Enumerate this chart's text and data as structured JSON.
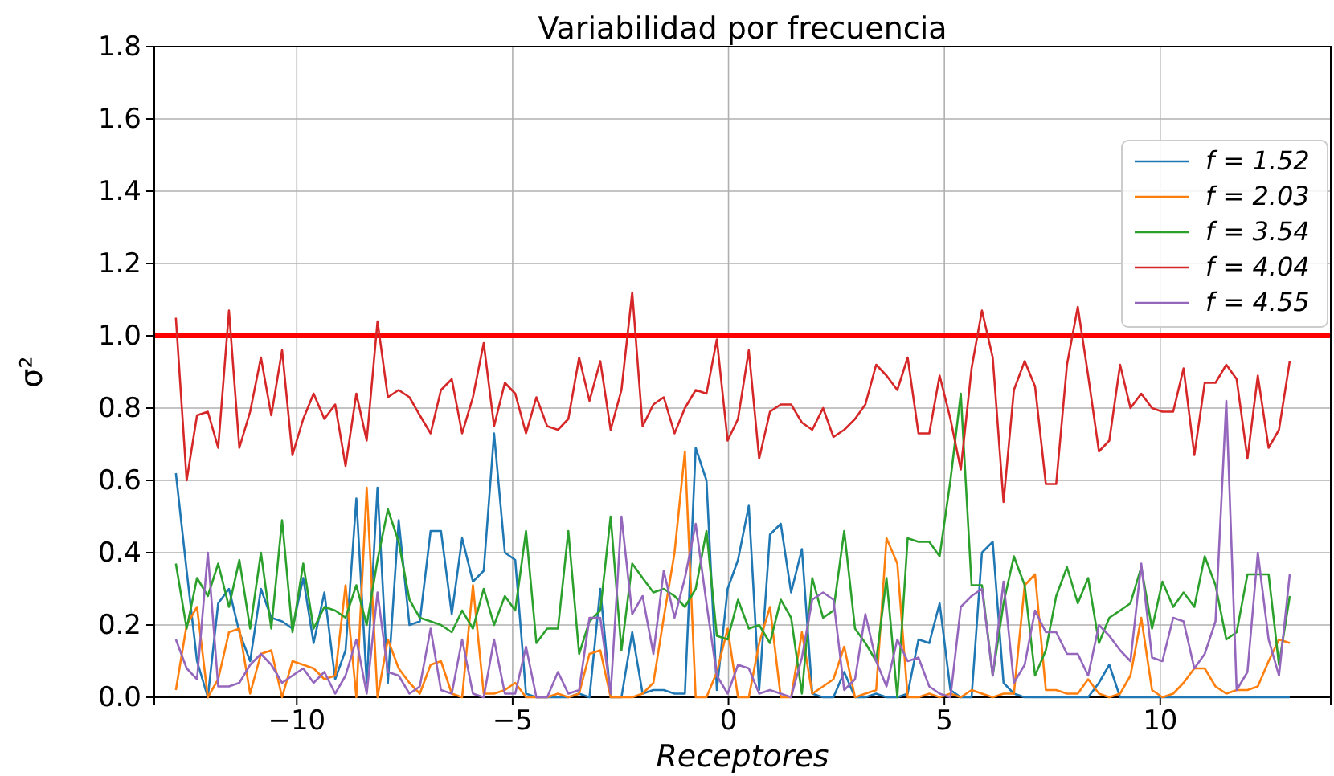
{
  "chart_data": {
    "type": "line",
    "title": "Variabilidad por frecuencia",
    "xlabel": "Receptores",
    "ylabel": "σ²",
    "x": [
      -12.8,
      -12.55,
      -12.31,
      -12.06,
      -11.82,
      -11.57,
      -11.33,
      -11.08,
      -10.83,
      -10.59,
      -10.34,
      -10.1,
      -9.85,
      -9.61,
      -9.36,
      -9.11,
      -8.87,
      -8.62,
      -8.38,
      -8.13,
      -7.89,
      -7.64,
      -7.39,
      -7.15,
      -6.9,
      -6.66,
      -6.41,
      -6.17,
      -5.92,
      -5.67,
      -5.43,
      -5.18,
      -4.94,
      -4.69,
      -4.45,
      -4.2,
      -3.95,
      -3.71,
      -3.46,
      -3.22,
      -2.97,
      -2.73,
      -2.48,
      -2.23,
      -1.99,
      -1.74,
      -1.5,
      -1.25,
      -1.01,
      -0.76,
      -0.51,
      -0.27,
      -0.02,
      0.22,
      0.47,
      0.71,
      0.96,
      1.21,
      1.45,
      1.7,
      1.94,
      2.19,
      2.43,
      2.68,
      2.93,
      3.17,
      3.42,
      3.66,
      3.91,
      4.15,
      4.4,
      4.65,
      4.89,
      5.14,
      5.38,
      5.63,
      5.87,
      6.12,
      6.37,
      6.61,
      6.86,
      7.1,
      7.35,
      7.59,
      7.84,
      8.09,
      8.33,
      8.58,
      8.82,
      9.07,
      9.31,
      9.56,
      9.81,
      10.05,
      10.3,
      10.54,
      10.79,
      11.03,
      11.28,
      11.53,
      11.77,
      12.02,
      12.26,
      12.51,
      12.75,
      13.0
    ],
    "series": [
      {
        "name": "f = 1.52",
        "color": "#1f77b4",
        "values": [
          0.62,
          0.35,
          0.1,
          0.0,
          0.26,
          0.3,
          0.18,
          0.1,
          0.3,
          0.22,
          0.21,
          0.19,
          0.33,
          0.15,
          0.29,
          0.05,
          0.13,
          0.55,
          0.04,
          0.58,
          0.04,
          0.49,
          0.2,
          0.21,
          0.46,
          0.46,
          0.23,
          0.44,
          0.32,
          0.35,
          0.73,
          0.4,
          0.38,
          0.01,
          0.0,
          0.0,
          null,
          0.0,
          0.01,
          0.0,
          0.3,
          0.0,
          0.0,
          0.18,
          0.01,
          0.02,
          0.02,
          0.01,
          0.01,
          0.69,
          0.6,
          0.02,
          0.3,
          0.38,
          0.53,
          0.02,
          0.45,
          0.48,
          0.29,
          0.41,
          0.01,
          0.0,
          0.0,
          0.07,
          0.0,
          0.0,
          0.01,
          0.0,
          0.0,
          0.01,
          0.16,
          0.15,
          0.26,
          0.02,
          0.0,
          0.0,
          0.4,
          0.43,
          0.04,
          0.01,
          0.0,
          0.0,
          0.0,
          0.0,
          0.0,
          0.0,
          0.0,
          0.04,
          0.09,
          0.0,
          0.0,
          0.0,
          0.0,
          0.0,
          0.0,
          0.0,
          0.0,
          0.0,
          0.0,
          0.0,
          0.0,
          0.0,
          0.0,
          0.0,
          0.0,
          0.0
        ]
      },
      {
        "name": "f = 2.03",
        "color": "#ff7f0e",
        "values": [
          0.02,
          0.2,
          0.25,
          0.0,
          0.05,
          0.18,
          0.19,
          0.01,
          0.12,
          0.13,
          0.0,
          0.1,
          0.09,
          0.08,
          0.05,
          0.06,
          0.31,
          0.0,
          0.58,
          0.0,
          0.16,
          0.08,
          0.04,
          0.01,
          0.09,
          0.1,
          0.01,
          0.0,
          0.31,
          0.01,
          0.01,
          0.02,
          0.04,
          0.0,
          0.0,
          0.0,
          0.01,
          0.0,
          0.01,
          0.12,
          0.13,
          0.0,
          0.0,
          0.0,
          0.01,
          0.04,
          0.22,
          0.4,
          0.68,
          0.0,
          0.0,
          0.07,
          0.19,
          0.0,
          0.0,
          0.15,
          0.25,
          0.0,
          0.0,
          0.18,
          0.01,
          0.03,
          0.05,
          0.14,
          0.0,
          0.01,
          0.02,
          0.44,
          0.37,
          0.0,
          0.0,
          0.01,
          0.0,
          0.01,
          0.0,
          0.02,
          0.01,
          0.0,
          0.01,
          0.01,
          0.31,
          0.34,
          0.02,
          0.02,
          0.01,
          0.01,
          0.05,
          0.01,
          0.0,
          0.01,
          0.06,
          0.22,
          0.02,
          0.0,
          0.01,
          0.04,
          0.08,
          0.08,
          0.03,
          0.01,
          0.02,
          0.02,
          0.03,
          0.1,
          0.16,
          0.15
        ]
      },
      {
        "name": "f = 3.54",
        "color": "#2ca02c",
        "values": [
          0.37,
          0.19,
          0.33,
          0.28,
          0.37,
          0.25,
          0.38,
          0.19,
          0.4,
          0.19,
          0.49,
          0.18,
          0.37,
          0.19,
          0.25,
          0.24,
          0.22,
          0.31,
          0.2,
          0.38,
          0.52,
          0.43,
          0.27,
          0.22,
          0.21,
          0.2,
          0.18,
          0.24,
          0.19,
          0.3,
          0.2,
          0.28,
          0.24,
          0.46,
          0.15,
          0.19,
          0.19,
          0.46,
          0.12,
          0.21,
          0.24,
          0.5,
          0.13,
          0.37,
          0.33,
          0.29,
          0.3,
          0.28,
          0.25,
          0.3,
          0.46,
          0.17,
          0.16,
          0.27,
          0.19,
          0.2,
          0.15,
          0.27,
          0.22,
          0.01,
          0.33,
          0.22,
          0.24,
          0.46,
          0.19,
          0.15,
          0.1,
          0.33,
          0.0,
          0.44,
          0.43,
          0.43,
          0.39,
          0.6,
          0.84,
          0.31,
          0.31,
          0.06,
          0.26,
          0.39,
          0.31,
          0.06,
          0.13,
          0.28,
          0.36,
          0.26,
          0.33,
          0.15,
          0.22,
          0.24,
          0.26,
          0.36,
          0.19,
          0.32,
          0.25,
          0.29,
          0.25,
          0.39,
          0.31,
          0.16,
          0.18,
          0.34,
          0.34,
          0.34,
          0.09,
          0.28
        ]
      },
      {
        "name": "f = 4.04",
        "color": "#d62728",
        "values": [
          1.05,
          0.6,
          0.78,
          0.79,
          0.69,
          1.07,
          0.69,
          0.79,
          0.94,
          0.78,
          0.96,
          0.67,
          0.77,
          0.84,
          0.77,
          0.81,
          0.64,
          0.84,
          0.71,
          1.04,
          0.83,
          0.85,
          0.83,
          0.78,
          0.73,
          0.85,
          0.88,
          0.73,
          0.83,
          0.98,
          0.75,
          0.87,
          0.84,
          0.73,
          0.83,
          0.75,
          0.74,
          0.77,
          0.94,
          0.82,
          0.93,
          0.74,
          0.85,
          1.12,
          0.75,
          0.81,
          0.83,
          0.73,
          0.8,
          0.85,
          0.84,
          0.99,
          0.71,
          0.77,
          0.96,
          0.66,
          0.79,
          0.81,
          0.81,
          0.76,
          0.74,
          0.8,
          0.72,
          0.74,
          0.77,
          0.81,
          0.92,
          0.89,
          0.85,
          0.94,
          0.73,
          0.73,
          0.89,
          0.77,
          0.63,
          0.91,
          1.07,
          0.94,
          0.54,
          0.85,
          0.93,
          0.86,
          0.59,
          0.59,
          0.92,
          1.08,
          0.89,
          0.68,
          0.71,
          0.92,
          0.8,
          0.84,
          0.8,
          0.79,
          0.79,
          0.91,
          0.67,
          0.87,
          0.87,
          0.92,
          0.88,
          0.66,
          0.89,
          0.69,
          0.74,
          0.93
        ]
      },
      {
        "name": "f = 4.55",
        "color": "#9467bd",
        "values": [
          0.16,
          0.08,
          0.05,
          0.4,
          0.03,
          0.03,
          0.04,
          0.09,
          0.12,
          0.09,
          0.04,
          0.06,
          0.08,
          0.04,
          0.07,
          0.01,
          0.06,
          0.16,
          0.01,
          0.29,
          0.07,
          0.06,
          0.01,
          0.03,
          0.19,
          0.02,
          0.01,
          0.16,
          0.01,
          0.0,
          0.16,
          0.01,
          0.01,
          0.14,
          0.0,
          0.0,
          0.07,
          0.01,
          0.02,
          0.22,
          0.22,
          0.01,
          0.5,
          0.23,
          0.28,
          0.12,
          0.35,
          0.22,
          0.33,
          0.48,
          0.26,
          0.06,
          0.01,
          0.09,
          0.08,
          0.01,
          0.02,
          0.01,
          0.0,
          0.11,
          0.27,
          0.29,
          0.27,
          0.02,
          0.05,
          0.23,
          0.1,
          0.03,
          0.16,
          0.1,
          0.11,
          0.03,
          0.01,
          0.0,
          0.25,
          0.28,
          0.3,
          0.06,
          0.32,
          0.04,
          0.09,
          0.24,
          0.18,
          0.18,
          0.12,
          0.12,
          0.06,
          0.2,
          0.17,
          0.13,
          0.1,
          0.37,
          0.11,
          0.1,
          0.22,
          0.21,
          0.08,
          0.12,
          0.21,
          0.82,
          0.02,
          0.07,
          0.4,
          0.16,
          0.06,
          0.34
        ]
      }
    ],
    "xlim": [
      -13.3,
      13.95
    ],
    "ylim": [
      0,
      1.8
    ],
    "xticks": [
      {
        "value": -10,
        "label": "−10"
      },
      {
        "value": -5,
        "label": "−5"
      },
      0,
      5,
      10
    ],
    "yticks": [
      {
        "value": 0,
        "label": "0.0"
      },
      {
        "value": 0.2,
        "label": "0.2"
      },
      {
        "value": 0.4,
        "label": "0.4"
      },
      {
        "value": 0.6,
        "label": "0.6"
      },
      {
        "value": 0.8,
        "label": "0.8"
      },
      {
        "value": 1,
        "label": "1.0"
      },
      {
        "value": 1.2,
        "label": "1.2"
      },
      {
        "value": 1.4,
        "label": "1.4"
      },
      {
        "value": 1.6,
        "label": "1.6"
      },
      {
        "value": 1.8,
        "label": "1.8"
      }
    ],
    "ref_lines": [
      {
        "axis": "y",
        "value": 1,
        "color": "#ff0000"
      }
    ],
    "grid": true,
    "legend": "right",
    "marker": "none",
    "line_style": "solid"
  }
}
